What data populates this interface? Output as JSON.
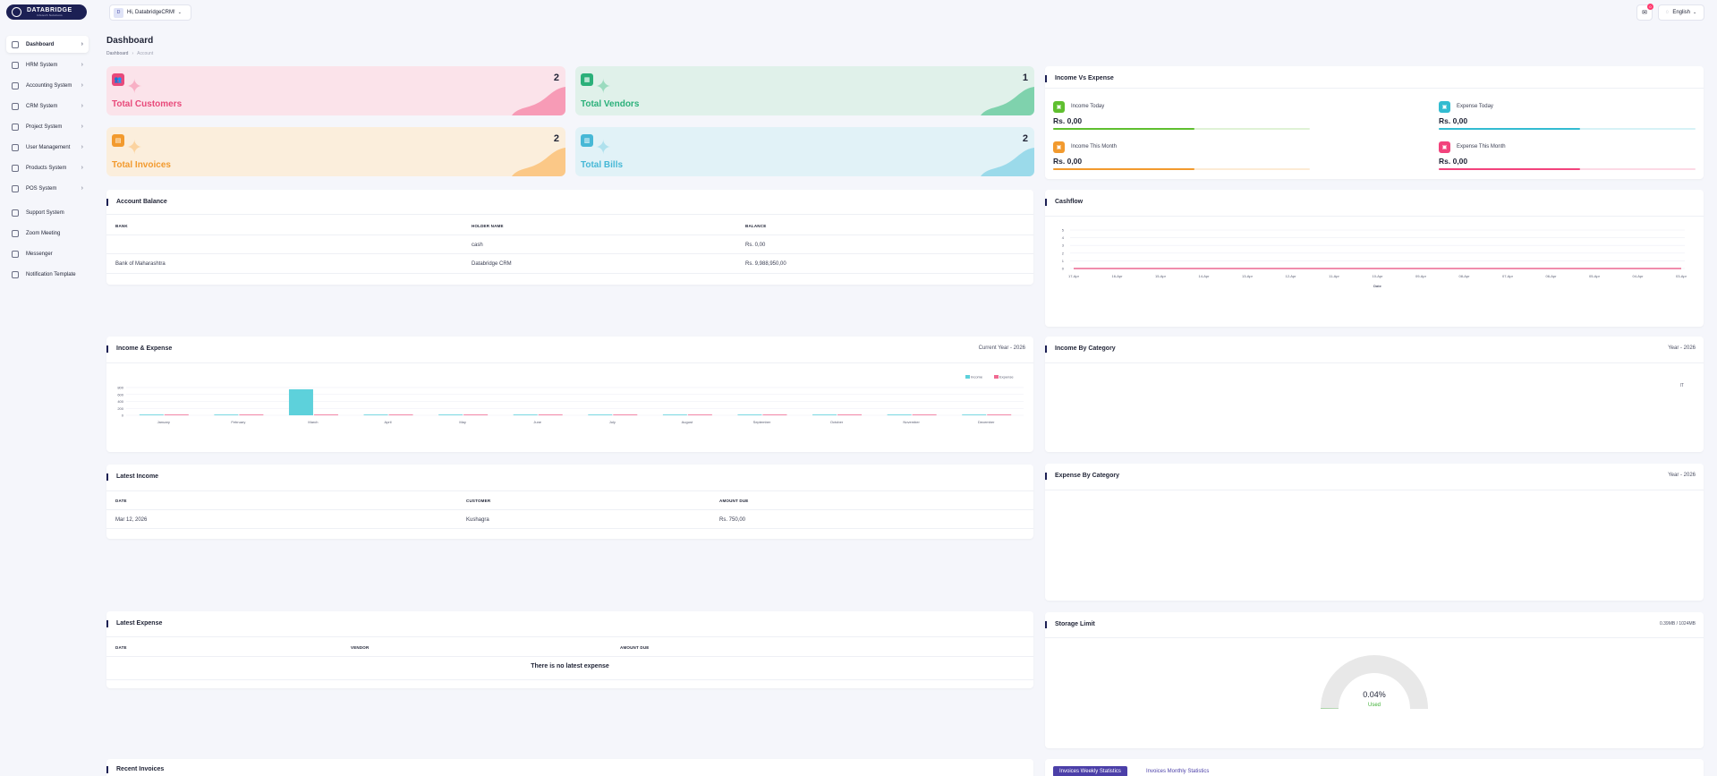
{
  "brand": {
    "name": "DATABRIDGE",
    "tagline": "Infotech Solutions"
  },
  "sidebar": {
    "items": [
      {
        "label": "Dashboard",
        "icon": "home-icon",
        "chevron": "›",
        "active": true
      },
      {
        "label": "HRM System",
        "icon": "user-icon",
        "chevron": "›"
      },
      {
        "label": "Accounting System",
        "icon": "box-icon",
        "chevron": "›"
      },
      {
        "label": "CRM System",
        "icon": "layers-icon",
        "chevron": "›"
      },
      {
        "label": "Project System",
        "icon": "share-icon",
        "chevron": "›"
      },
      {
        "label": "User Management",
        "icon": "users-icon",
        "chevron": "›"
      },
      {
        "label": "Products System",
        "icon": "shopping-bag-icon",
        "chevron": "›"
      },
      {
        "label": "POS System",
        "icon": "grid-icon",
        "chevron": "›"
      },
      {
        "label": "Support System",
        "icon": "headphones-icon",
        "chevron": ""
      },
      {
        "label": "Zoom Meeting",
        "icon": "user-plus-icon",
        "chevron": ""
      },
      {
        "label": "Messenger",
        "icon": "message-icon",
        "chevron": ""
      },
      {
        "label": "Notification Template",
        "icon": "notification-icon",
        "chevron": ""
      }
    ]
  },
  "header": {
    "user_label": "Hi, DatabridgeCRM!",
    "user_initial": "D",
    "language": "English",
    "notification_count": "0"
  },
  "page": {
    "title": "Dashboard",
    "breadcrumb": [
      "Dashboard",
      "Account"
    ],
    "breadcrumb_sep": "›"
  },
  "stats": [
    {
      "label": "Total Customers",
      "value": "2",
      "color": "#e8497a",
      "bg": "#fbe3ea",
      "wave": "#f79bb6",
      "icon": "users-icon",
      "glyph": "👥"
    },
    {
      "label": "Total Vendors",
      "value": "1",
      "color": "#2bb07a",
      "bg": "#e0f1ea",
      "wave": "#7fd2ad",
      "icon": "store-icon",
      "glyph": "▦"
    },
    {
      "label": "Total Invoices",
      "value": "2",
      "color": "#f29a2e",
      "bg": "#fbeedc",
      "wave": "#fbc887",
      "icon": "invoice-icon",
      "glyph": "▤"
    },
    {
      "label": "Total Bills",
      "value": "2",
      "color": "#47b8d6",
      "bg": "#e1f2f7",
      "wave": "#9bdaea",
      "icon": "bill-icon",
      "glyph": "▥"
    }
  ],
  "income_vs_expense": {
    "title": "Income Vs Expense",
    "items": [
      {
        "label": "Income Today",
        "value": "Rs. 0,00",
        "color": "#5fbf2f",
        "icon": "money-icon",
        "level": 0.55
      },
      {
        "label": "Expense Today",
        "value": "Rs. 0,00",
        "color": "#33bcd1",
        "icon": "money-icon",
        "level": 0.55
      },
      {
        "label": "Income This Month",
        "value": "Rs. 0,00",
        "color": "#f29a2e",
        "icon": "money-icon",
        "level": 0.55
      },
      {
        "label": "Expense This Month",
        "value": "Rs. 0,00",
        "color": "#f2437c",
        "icon": "money-icon",
        "level": 0.55
      }
    ]
  },
  "account_balance": {
    "title": "Account Balance",
    "headers": [
      "BANK",
      "HOLDER NAME",
      "BALANCE"
    ],
    "rows": [
      [
        "",
        "cash",
        "Rs. 0,00"
      ],
      [
        "Bank of Maharashtra",
        "Databridge CRM",
        "Rs. 9,988,950,00"
      ]
    ]
  },
  "cashflow": {
    "title": "Cashflow",
    "xlabel": "Date"
  },
  "income_expense": {
    "title": "Income & Expense",
    "period": "Current Year - 2026"
  },
  "income_by_category": {
    "title": "Income By Category",
    "period": "Year - 2026",
    "marker": "IT"
  },
  "expense_by_category": {
    "title": "Expense By Category",
    "period": "Year - 2026"
  },
  "latest_income": {
    "title": "Latest Income",
    "headers": [
      "DATE",
      "CUSTOMER",
      "AMOUNT DUE"
    ],
    "rows": [
      [
        "Mar 12, 2026",
        "Kushagra",
        "Rs. 750,00"
      ]
    ]
  },
  "latest_expense": {
    "title": "Latest Expense",
    "headers": [
      "DATE",
      "VENDOR",
      "AMOUNT DUE"
    ],
    "empty": "There is no latest expense"
  },
  "storage": {
    "title": "Storage Limit",
    "usage": "0.39MB / 1024MB",
    "percent": "0.04%",
    "status": "Used",
    "fraction": 0.0004
  },
  "recent_invoices": {
    "title": "Recent Invoices"
  },
  "invoice_tabs": {
    "weekly": "Invoices Weekly Statistics",
    "monthly": "Invoices Monthly Statistics"
  },
  "chart_data": [
    {
      "type": "line",
      "title": "",
      "xlabel": "Date",
      "ylabel": "",
      "x": [
        "17-Apr",
        "16-Apr",
        "15-Apr",
        "14-Apr",
        "13-Apr",
        "12-Apr",
        "11-Apr",
        "10-Apr",
        "09-Apr",
        "08-Apr",
        "07-Apr",
        "06-Apr",
        "05-Apr",
        "04-Apr",
        "03-Apr"
      ],
      "yticks": [
        0,
        1,
        2,
        3,
        4,
        5
      ],
      "ylim": [
        0,
        5
      ],
      "series": [
        {
          "name": "",
          "color": "#e8497a",
          "values": [
            0,
            0,
            0,
            0,
            0,
            0,
            0,
            0,
            0,
            0,
            0,
            0,
            0,
            0,
            0
          ]
        }
      ],
      "grid": true
    },
    {
      "type": "bar",
      "title": "",
      "categories": [
        "January",
        "February",
        "March",
        "April",
        "May",
        "June",
        "July",
        "August",
        "September",
        "October",
        "November",
        "December"
      ],
      "yticks": [
        0,
        200,
        400,
        600,
        800
      ],
      "ylim": [
        0,
        800
      ],
      "series": [
        {
          "name": "Income",
          "color": "#5dd1db",
          "values": [
            0,
            0,
            750,
            0,
            0,
            0,
            0,
            0,
            0,
            0,
            0,
            0
          ]
        },
        {
          "name": "Expense",
          "color": "#f06a92",
          "values": [
            0,
            0,
            0,
            0,
            0,
            0,
            0,
            0,
            0,
            0,
            0,
            0
          ]
        }
      ],
      "legend": "top-right",
      "grid": true
    }
  ]
}
